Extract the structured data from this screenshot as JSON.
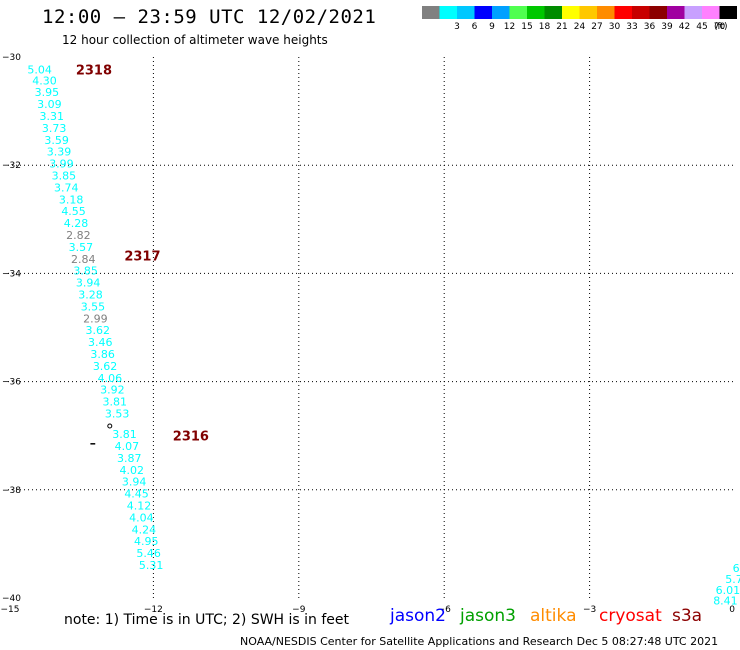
{
  "header": {
    "title": "12:00 – 23:59 UTC 12/02/2021",
    "subtitle": "12 hour collection of altimeter wave heights"
  },
  "legend": {
    "unit": "(ft)",
    "bins": [
      {
        "label": "",
        "color": "#808080"
      },
      {
        "label": "3",
        "color": "#00ffff"
      },
      {
        "label": "6",
        "color": "#00c8ff"
      },
      {
        "label": "9",
        "color": "#0000ff"
      },
      {
        "label": "12",
        "color": "#00a0ff"
      },
      {
        "label": "15",
        "color": "#50ff50"
      },
      {
        "label": "18",
        "color": "#00c800"
      },
      {
        "label": "21",
        "color": "#008c00"
      },
      {
        "label": "24",
        "color": "#ffff00"
      },
      {
        "label": "27",
        "color": "#ffc800"
      },
      {
        "label": "30",
        "color": "#ff8c00"
      },
      {
        "label": "33",
        "color": "#ff0000"
      },
      {
        "label": "36",
        "color": "#c80000"
      },
      {
        "label": "39",
        "color": "#8c0000"
      },
      {
        "label": "42",
        "color": "#a000a0"
      },
      {
        "label": "45",
        "color": "#c8a0ff"
      },
      {
        "label": "70",
        "color": "#ff80ff"
      },
      {
        "label": "",
        "color": "#000000"
      }
    ]
  },
  "map": {
    "lon_ticks": [
      "−15",
      "−12",
      "−9",
      "−6",
      "−3",
      "0"
    ],
    "lat_ticks": [
      "−30",
      "−32",
      "−34",
      "−36",
      "−38",
      "−40"
    ],
    "lon_range": [
      -15,
      0
    ],
    "lat_range": [
      -30,
      -40
    ]
  },
  "track_labels": [
    {
      "text": "2318",
      "lat": -30.23,
      "lon": -13.6
    },
    {
      "text": "2317",
      "lat": -33.67,
      "lon": -12.6
    },
    {
      "text": "2316",
      "lat": -37.0,
      "lon": -11.6
    }
  ],
  "observations": {
    "main_track": [
      {
        "v": "5.04",
        "lat": -30.23,
        "lon": -14.6,
        "c": "#00ffff"
      },
      {
        "v": "4.30",
        "lat": -30.43,
        "lon": -14.5,
        "c": "#00ffff"
      },
      {
        "v": "3.95",
        "lat": -30.65,
        "lon": -14.45,
        "c": "#00ffff"
      },
      {
        "v": "3.09",
        "lat": -30.87,
        "lon": -14.4,
        "c": "#00ffff"
      },
      {
        "v": "3.31",
        "lat": -31.09,
        "lon": -14.35,
        "c": "#00ffff"
      },
      {
        "v": "3.73",
        "lat": -31.31,
        "lon": -14.3,
        "c": "#00ffff"
      },
      {
        "v": "3.59",
        "lat": -31.53,
        "lon": -14.25,
        "c": "#00ffff"
      },
      {
        "v": "3.39",
        "lat": -31.75,
        "lon": -14.2,
        "c": "#00ffff"
      },
      {
        "v": "3.99",
        "lat": -31.97,
        "lon": -14.15,
        "c": "#00ffff"
      },
      {
        "v": "3.85",
        "lat": -32.19,
        "lon": -14.1,
        "c": "#00ffff"
      },
      {
        "v": "3.74",
        "lat": -32.41,
        "lon": -14.05,
        "c": "#00ffff"
      },
      {
        "v": "3.18",
        "lat": -32.63,
        "lon": -13.95,
        "c": "#00ffff"
      },
      {
        "v": "4.55",
        "lat": -32.85,
        "lon": -13.9,
        "c": "#00ffff"
      },
      {
        "v": "4.28",
        "lat": -33.07,
        "lon": -13.85,
        "c": "#00ffff"
      },
      {
        "v": "2.82",
        "lat": -33.29,
        "lon": -13.8,
        "c": "#808080"
      },
      {
        "v": "3.57",
        "lat": -33.51,
        "lon": -13.75,
        "c": "#00ffff"
      },
      {
        "v": "2.84",
        "lat": -33.73,
        "lon": -13.7,
        "c": "#808080"
      },
      {
        "v": "3.85",
        "lat": -33.95,
        "lon": -13.65,
        "c": "#00ffff"
      },
      {
        "v": "3.94",
        "lat": -34.17,
        "lon": -13.6,
        "c": "#00ffff"
      },
      {
        "v": "3.28",
        "lat": -34.39,
        "lon": -13.55,
        "c": "#00ffff"
      },
      {
        "v": "3.55",
        "lat": -34.61,
        "lon": -13.5,
        "c": "#00ffff"
      },
      {
        "v": "2.99",
        "lat": -34.83,
        "lon": -13.45,
        "c": "#808080"
      },
      {
        "v": "3.62",
        "lat": -35.05,
        "lon": -13.4,
        "c": "#00ffff"
      },
      {
        "v": "3.46",
        "lat": -35.27,
        "lon": -13.35,
        "c": "#00ffff"
      },
      {
        "v": "3.86",
        "lat": -35.49,
        "lon": -13.3,
        "c": "#00ffff"
      },
      {
        "v": "3.62",
        "lat": -35.71,
        "lon": -13.25,
        "c": "#00ffff"
      },
      {
        "v": "4.06",
        "lat": -35.93,
        "lon": -13.15,
        "c": "#00ffff"
      },
      {
        "v": "3.92",
        "lat": -36.15,
        "lon": -13.1,
        "c": "#00ffff"
      },
      {
        "v": "3.81",
        "lat": -36.37,
        "lon": -13.05,
        "c": "#00ffff"
      },
      {
        "v": "3.53",
        "lat": -36.59,
        "lon": -13.0,
        "c": "#00ffff"
      },
      {
        "v": "3.81",
        "lat": -36.97,
        "lon": -12.85,
        "c": "#00ffff"
      },
      {
        "v": "4.07",
        "lat": -37.19,
        "lon": -12.8,
        "c": "#00ffff"
      },
      {
        "v": "3.87",
        "lat": -37.41,
        "lon": -12.75,
        "c": "#00ffff"
      },
      {
        "v": "4.02",
        "lat": -37.63,
        "lon": -12.7,
        "c": "#00ffff"
      },
      {
        "v": "3.94",
        "lat": -37.85,
        "lon": -12.65,
        "c": "#00ffff"
      },
      {
        "v": "4.45",
        "lat": -38.07,
        "lon": -12.6,
        "c": "#00ffff"
      },
      {
        "v": "4.12",
        "lat": -38.29,
        "lon": -12.55,
        "c": "#00ffff"
      },
      {
        "v": "4.04",
        "lat": -38.51,
        "lon": -12.5,
        "c": "#00ffff"
      },
      {
        "v": "4.24",
        "lat": -38.73,
        "lon": -12.45,
        "c": "#00ffff"
      },
      {
        "v": "4.95",
        "lat": -38.95,
        "lon": -12.4,
        "c": "#00ffff"
      },
      {
        "v": "5.46",
        "lat": -39.17,
        "lon": -12.35,
        "c": "#00ffff"
      },
      {
        "v": "5.31",
        "lat": -39.39,
        "lon": -12.3,
        "c": "#00ffff"
      }
    ],
    "east_track": [
      {
        "v": "6",
        "lat": -39.45,
        "lon": -0.05,
        "c": "#00ffff"
      },
      {
        "v": "5.7",
        "lat": -39.65,
        "lon": -0.2,
        "c": "#00ffff"
      },
      {
        "v": "6.01",
        "lat": -39.85,
        "lon": -0.4,
        "c": "#00ffff"
      },
      {
        "v": "8.41",
        "lat": -40.05,
        "lon": -0.45,
        "c": "#00ffff"
      }
    ]
  },
  "footer": {
    "note": "note:  1) Time is in UTC; 2) SWH is in feet",
    "satellites": [
      {
        "name": "jason2",
        "color": "#0000ff"
      },
      {
        "name": "jason3",
        "color": "#00a000"
      },
      {
        "name": "altika",
        "color": "#ff8c00"
      },
      {
        "name": "cryosat",
        "color": "#ff0000"
      },
      {
        "name": "s3a",
        "color": "#8c0000"
      }
    ],
    "credit": "NOAA/NESDIS Center for Satellite Applications and Research    Dec  5 08:27:48 UTC 2021"
  }
}
